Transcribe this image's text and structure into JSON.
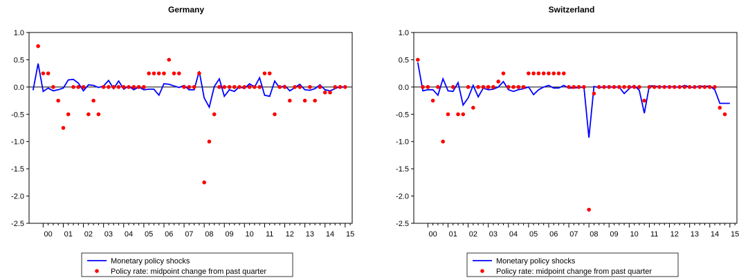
{
  "chart_data": [
    {
      "type": "line",
      "title": "Germany",
      "xlabel": "",
      "ylabel": "",
      "ylim": [
        -2.5,
        1.0
      ],
      "y_ticks": [
        "1.0",
        "0.5",
        "0.0",
        "-0.5",
        "-1.0",
        "-1.5",
        "-2.0",
        "-2.5"
      ],
      "x_tick_labels": [
        "00",
        "01",
        "02",
        "03",
        "04",
        "05",
        "06",
        "07",
        "08",
        "09",
        "10",
        "11",
        "12",
        "13",
        "14",
        "15"
      ],
      "grid": false,
      "zero_line": true,
      "legend_position": "below",
      "legend": [
        "Monetary policy shocks",
        "Policy rate: midpoint change from past quarter"
      ],
      "series": [
        {
          "name": "Monetary policy shocks",
          "kind": "line",
          "color": "#0000ff",
          "x": [
            1999.5,
            1999.75,
            2000.0,
            2000.25,
            2000.5,
            2000.75,
            2001.0,
            2001.25,
            2001.5,
            2001.75,
            2002.0,
            2002.25,
            2002.5,
            2002.75,
            2003.0,
            2003.25,
            2003.5,
            2003.75,
            2004.0,
            2004.25,
            2004.5,
            2004.75,
            2005.0,
            2005.25,
            2005.5,
            2005.75,
            2006.0,
            2006.25,
            2006.5,
            2006.75,
            2007.0,
            2007.25,
            2007.5,
            2007.75,
            2008.0,
            2008.25,
            2008.5,
            2008.75,
            2009.0,
            2009.25,
            2009.5,
            2009.75,
            2010.0,
            2010.25,
            2010.5,
            2010.75,
            2011.0,
            2011.25,
            2011.5,
            2011.75,
            2012.0,
            2012.25,
            2012.5,
            2012.75,
            2013.0,
            2013.25,
            2013.5,
            2013.75,
            2014.0,
            2014.25,
            2014.5,
            2014.75,
            2015.0
          ],
          "values": [
            -0.06,
            0.43,
            -0.08,
            -0.02,
            -0.07,
            -0.05,
            -0.02,
            0.13,
            0.14,
            0.07,
            -0.07,
            0.04,
            0.03,
            -0.01,
            0.02,
            0.12,
            -0.03,
            0.11,
            -0.04,
            0.02,
            -0.05,
            0.0,
            -0.05,
            -0.04,
            -0.04,
            -0.15,
            0.06,
            0.05,
            0.02,
            -0.01,
            0.03,
            -0.05,
            -0.05,
            0.29,
            -0.2,
            -0.37,
            0.01,
            0.15,
            -0.17,
            -0.05,
            -0.08,
            0.01,
            -0.03,
            0.06,
            0.0,
            0.17,
            -0.15,
            -0.17,
            0.11,
            -0.02,
            0.03,
            -0.07,
            -0.01,
            0.05,
            -0.05,
            -0.06,
            -0.03,
            0.04,
            -0.05,
            -0.07,
            -0.03,
            0.01,
            -0.01
          ]
        },
        {
          "name": "Policy rate: midpoint change from past quarter",
          "kind": "scatter",
          "color": "#ff0000",
          "x": [
            1999.75,
            2000.0,
            2000.25,
            2000.5,
            2000.75,
            2001.0,
            2001.25,
            2001.5,
            2001.75,
            2002.0,
            2002.25,
            2002.5,
            2002.75,
            2003.0,
            2003.25,
            2003.5,
            2003.75,
            2004.0,
            2004.25,
            2004.5,
            2004.75,
            2005.0,
            2005.25,
            2005.5,
            2005.75,
            2006.0,
            2006.25,
            2006.5,
            2006.75,
            2007.0,
            2007.25,
            2007.5,
            2007.75,
            2008.0,
            2008.25,
            2008.5,
            2008.75,
            2009.0,
            2009.25,
            2009.5,
            2009.75,
            2010.0,
            2010.25,
            2010.5,
            2010.75,
            2011.0,
            2011.25,
            2011.5,
            2011.75,
            2012.0,
            2012.25,
            2012.5,
            2012.75,
            2013.0,
            2013.25,
            2013.5,
            2013.75,
            2014.0,
            2014.25,
            2014.5,
            2014.75,
            2015.0
          ],
          "values": [
            0.75,
            0.25,
            0.25,
            0.0,
            -0.25,
            -0.75,
            -0.5,
            0.0,
            0.0,
            0.0,
            -0.5,
            -0.25,
            -0.5,
            0.0,
            0.0,
            0.0,
            0.0,
            0.0,
            0.0,
            0.0,
            0.0,
            0.0,
            0.25,
            0.25,
            0.25,
            0.25,
            0.5,
            0.25,
            0.25,
            0.0,
            0.0,
            0.0,
            0.25,
            -1.75,
            -1.0,
            -0.5,
            0.0,
            0.0,
            0.0,
            0.0,
            0.0,
            0.0,
            0.0,
            0.0,
            0.0,
            0.25,
            0.25,
            -0.5,
            0.0,
            0.0,
            -0.25,
            0.0,
            0.0,
            -0.25,
            0.0,
            -0.25,
            0.0,
            -0.1,
            -0.1,
            0.0,
            0.0,
            0.0
          ]
        }
      ]
    },
    {
      "type": "line",
      "title": "Switzerland",
      "xlabel": "",
      "ylabel": "",
      "ylim": [
        -2.5,
        1.0
      ],
      "y_ticks": [
        "1.0",
        "0.5",
        "0.0",
        "-0.5",
        "-1.0",
        "-1.5",
        "-2.0",
        "-2.5"
      ],
      "x_tick_labels": [
        "00",
        "01",
        "02",
        "03",
        "04",
        "05",
        "06",
        "07",
        "08",
        "09",
        "10",
        "11",
        "12",
        "13",
        "14",
        "15"
      ],
      "grid": false,
      "zero_line": true,
      "legend_position": "below",
      "legend": [
        "Monetary policy shocks",
        "Policy rate: midpoint change from past quarter"
      ],
      "series": [
        {
          "name": "Monetary policy shocks",
          "kind": "line",
          "color": "#0000ff",
          "x": [
            1999.5,
            1999.75,
            2000.0,
            2000.25,
            2000.5,
            2000.75,
            2001.0,
            2001.25,
            2001.5,
            2001.75,
            2002.0,
            2002.25,
            2002.5,
            2002.75,
            2003.0,
            2003.25,
            2003.5,
            2003.75,
            2004.0,
            2004.25,
            2004.5,
            2004.75,
            2005.0,
            2005.25,
            2005.5,
            2005.75,
            2006.0,
            2006.25,
            2006.5,
            2006.75,
            2007.0,
            2007.25,
            2007.5,
            2007.75,
            2008.0,
            2008.25,
            2008.5,
            2008.75,
            2009.0,
            2009.25,
            2009.5,
            2009.75,
            2010.0,
            2010.25,
            2010.5,
            2010.75,
            2011.0,
            2011.25,
            2011.5,
            2011.75,
            2012.0,
            2012.25,
            2012.5,
            2012.75,
            2013.0,
            2013.25,
            2013.5,
            2013.75,
            2014.0,
            2014.25,
            2014.5,
            2014.75,
            2015.0
          ],
          "values": [
            0.45,
            -0.07,
            -0.05,
            -0.05,
            -0.15,
            0.15,
            -0.07,
            -0.08,
            0.08,
            -0.33,
            -0.2,
            0.03,
            -0.18,
            -0.02,
            -0.05,
            -0.04,
            0.0,
            0.1,
            -0.05,
            -0.08,
            -0.05,
            -0.03,
            0.0,
            -0.14,
            -0.05,
            0.0,
            0.03,
            -0.02,
            -0.02,
            0.03,
            -0.02,
            -0.02,
            -0.01,
            0.0,
            -0.93,
            0.01,
            -0.01,
            0.0,
            0.0,
            0.0,
            0.0,
            -0.12,
            -0.03,
            0.03,
            -0.06,
            -0.48,
            0.02,
            0.02,
            0.0,
            0.01,
            0.0,
            0.01,
            -0.01,
            0.03,
            0.0,
            -0.01,
            0.02,
            0.01,
            0.02,
            -0.05,
            -0.3,
            -0.3,
            -0.3
          ]
        },
        {
          "name": "Policy rate: midpoint change from past quarter",
          "kind": "scatter",
          "color": "#ff0000",
          "x": [
            1999.5,
            1999.75,
            2000.0,
            2000.25,
            2000.5,
            2000.75,
            2001.0,
            2001.25,
            2001.5,
            2001.75,
            2002.0,
            2002.25,
            2002.5,
            2002.75,
            2003.0,
            2003.25,
            2003.5,
            2003.75,
            2004.0,
            2004.25,
            2004.5,
            2004.75,
            2005.0,
            2005.25,
            2005.5,
            2005.75,
            2006.0,
            2006.25,
            2006.5,
            2006.75,
            2007.0,
            2007.25,
            2007.5,
            2007.75,
            2008.0,
            2008.25,
            2008.5,
            2008.75,
            2009.0,
            2009.25,
            2009.5,
            2009.75,
            2010.0,
            2010.25,
            2010.5,
            2010.75,
            2011.0,
            2011.25,
            2011.5,
            2011.75,
            2012.0,
            2012.25,
            2012.5,
            2012.75,
            2013.0,
            2013.25,
            2013.5,
            2013.75,
            2014.0,
            2014.25,
            2014.5,
            2014.75
          ],
          "values": [
            0.5,
            0.0,
            0.0,
            -0.25,
            0.0,
            -1.0,
            -0.5,
            0.0,
            -0.5,
            -0.5,
            0.0,
            -0.38,
            0.0,
            0.0,
            0.0,
            0.0,
            0.1,
            0.25,
            0.0,
            0.0,
            0.0,
            0.0,
            0.25,
            0.25,
            0.25,
            0.25,
            0.25,
            0.25,
            0.25,
            0.25,
            0.0,
            0.0,
            0.0,
            0.0,
            -2.25,
            -0.12,
            0.0,
            0.0,
            0.0,
            0.0,
            0.0,
            0.0,
            0.0,
            0.0,
            0.0,
            -0.25,
            0.0,
            0.0,
            0.0,
            0.0,
            0.0,
            0.0,
            0.0,
            0.0,
            0.0,
            0.0,
            0.0,
            0.0,
            0.0,
            0.0,
            -0.38,
            -0.5
          ]
        }
      ]
    }
  ]
}
